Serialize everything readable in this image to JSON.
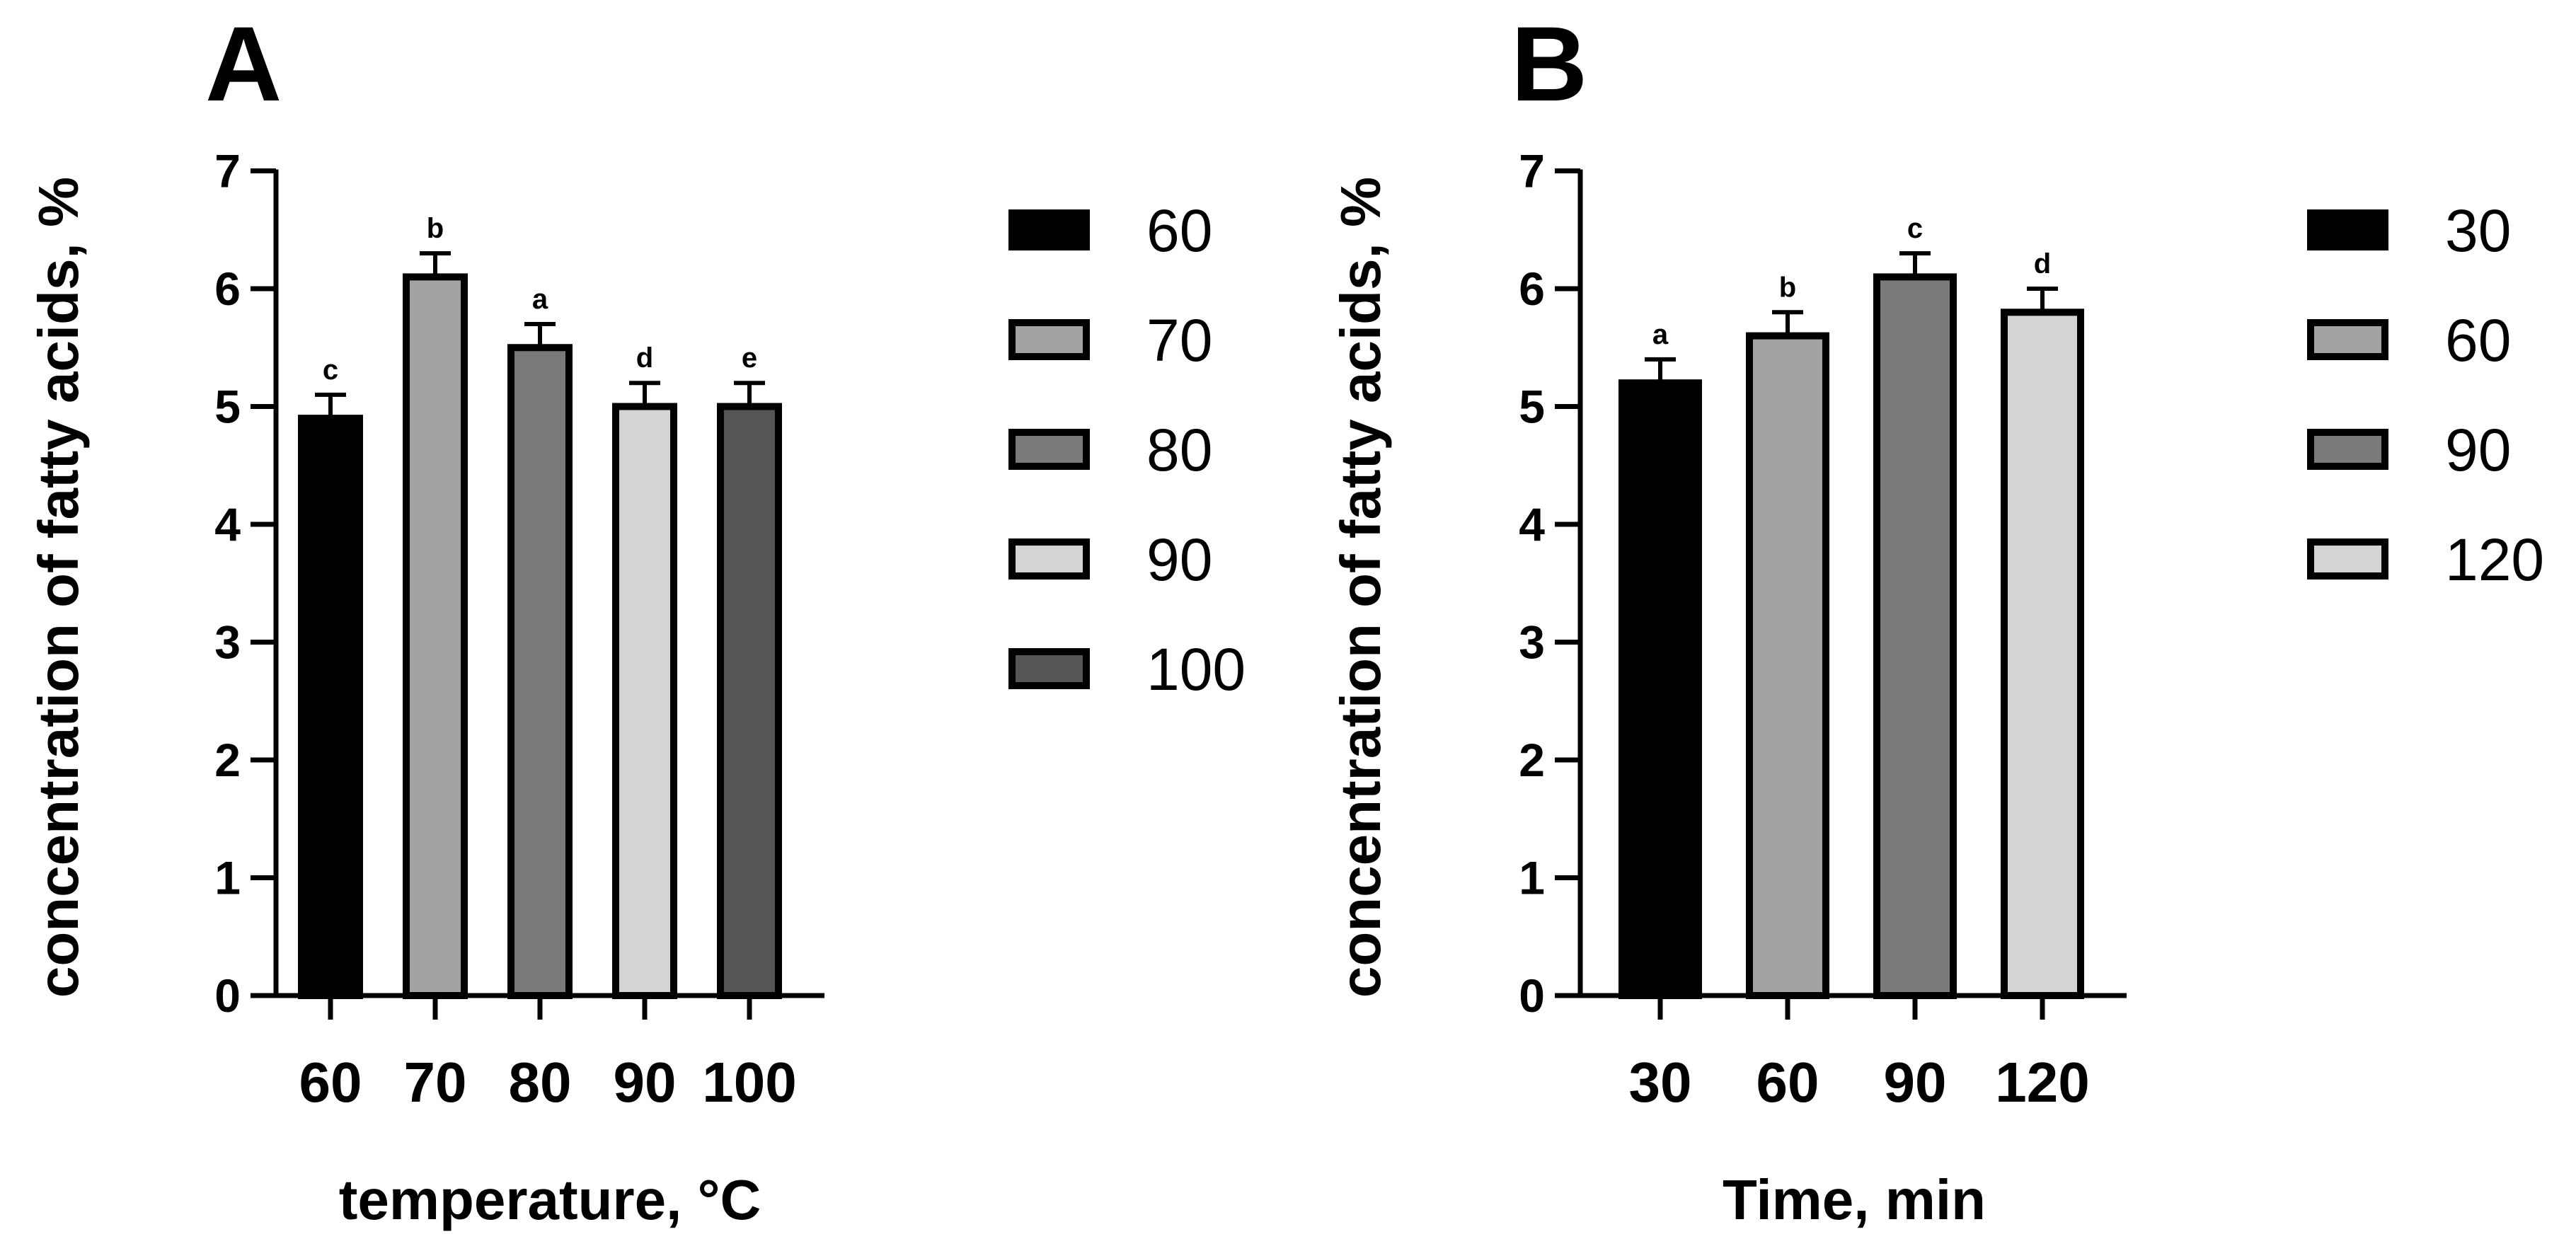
{
  "chart_data": [
    {
      "type": "bar",
      "panel_label": "A",
      "title": "",
      "xlabel": "temperature, °C",
      "ylabel": "concentration of fatty acids, %",
      "ylim": [
        0,
        7
      ],
      "yticks": [
        "0",
        "1",
        "2",
        "3",
        "4",
        "5",
        "6",
        "7"
      ],
      "categories": [
        "60",
        "70",
        "80",
        "90",
        "100"
      ],
      "values": [
        4.9,
        6.1,
        5.5,
        5.0,
        5.0
      ],
      "errors": [
        0.2,
        0.2,
        0.2,
        0.2,
        0.2
      ],
      "significance": [
        "c",
        "b",
        "a",
        "d",
        "e"
      ],
      "colors": [
        "#000000",
        "#a3a3a6",
        "#7a7a7a",
        "#d4d4d4",
        "#555555"
      ],
      "legend": [
        "60",
        "70",
        "80",
        "90",
        "100"
      ],
      "legend_position": "right"
    },
    {
      "type": "bar",
      "panel_label": "B",
      "title": "",
      "xlabel": "Time, min",
      "ylabel": "concentration of fatty acids, %",
      "ylim": [
        0,
        7
      ],
      "yticks": [
        "0",
        "1",
        "2",
        "3",
        "4",
        "5",
        "6",
        "7"
      ],
      "categories": [
        "30",
        "60",
        "90",
        "120"
      ],
      "values": [
        5.2,
        5.6,
        6.1,
        5.8
      ],
      "errors": [
        0.2,
        0.2,
        0.2,
        0.2
      ],
      "significance": [
        "a",
        "b",
        "c",
        "d"
      ],
      "colors": [
        "#000000",
        "#a3a3a6",
        "#7a7a7a",
        "#d4d4d4"
      ],
      "legend": [
        "30",
        "60",
        "90",
        "120"
      ],
      "legend_position": "right"
    }
  ]
}
